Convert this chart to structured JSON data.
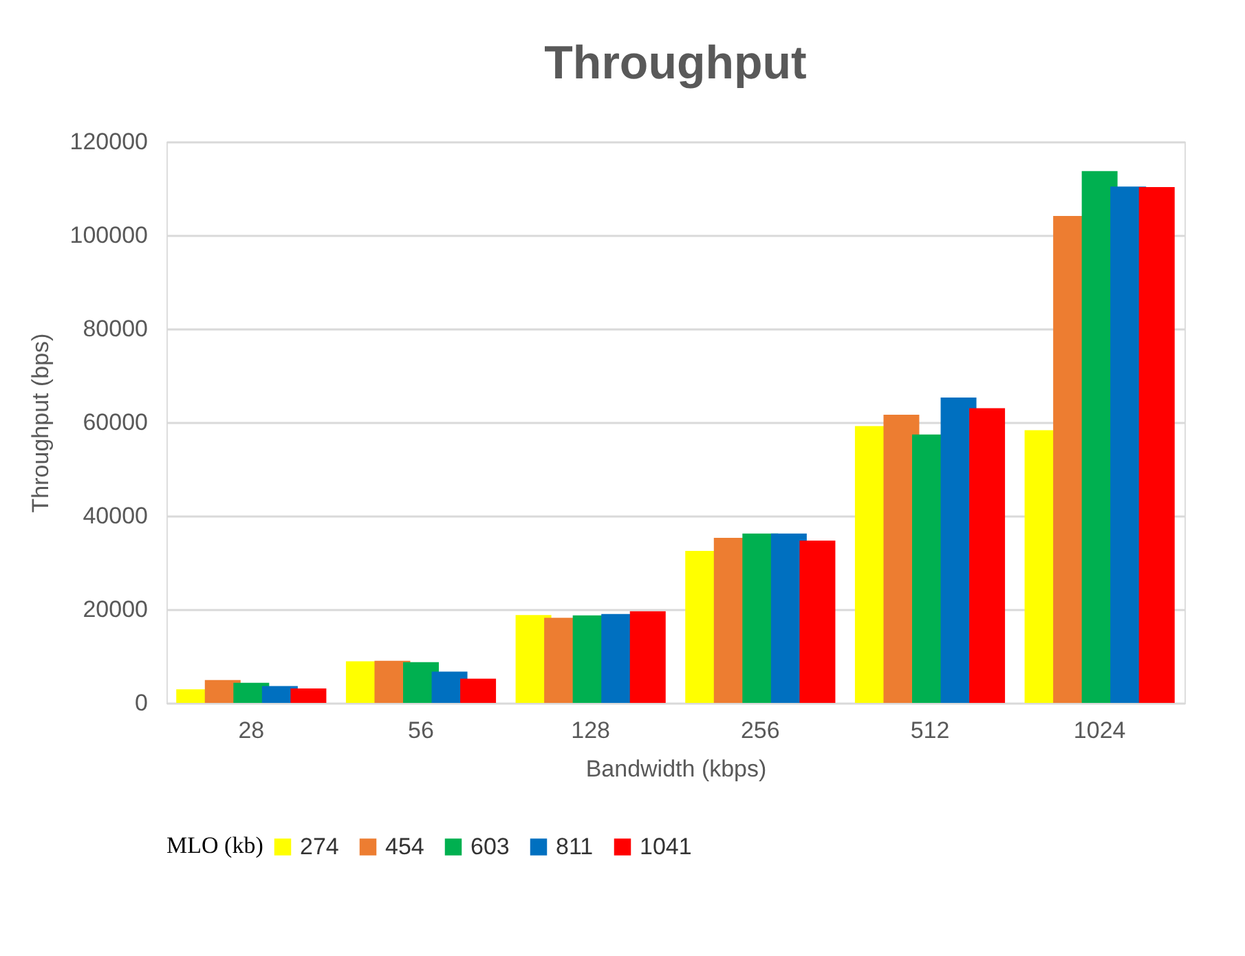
{
  "chart_data": {
    "type": "bar",
    "title": "Throughput",
    "xlabel": "Bandwidth (kbps)",
    "ylabel": "Throughput (bps)",
    "legend_title": "MLO (kb)",
    "categories": [
      "28",
      "56",
      "128",
      "256",
      "512",
      "1024"
    ],
    "series": [
      {
        "name": "274",
        "color": "#ffff00",
        "values": [
          2900,
          8900,
          18800,
          32500,
          59200,
          58300
        ]
      },
      {
        "name": "454",
        "color": "#ed7d31",
        "values": [
          4900,
          9000,
          18200,
          35300,
          61600,
          104100
        ]
      },
      {
        "name": "603",
        "color": "#00b050",
        "values": [
          4300,
          8700,
          18700,
          36200,
          57400,
          113700
        ]
      },
      {
        "name": "811",
        "color": "#0070c0",
        "values": [
          3600,
          6700,
          19000,
          36200,
          65300,
          110400
        ]
      },
      {
        "name": "1041",
        "color": "#ff0000",
        "values": [
          3100,
          5200,
          19600,
          34700,
          63000,
          110300
        ]
      }
    ],
    "ylim": [
      0,
      120000
    ],
    "yticks": [
      0,
      20000,
      40000,
      60000,
      80000,
      100000,
      120000
    ],
    "grid": "y",
    "legend": "bottom"
  }
}
